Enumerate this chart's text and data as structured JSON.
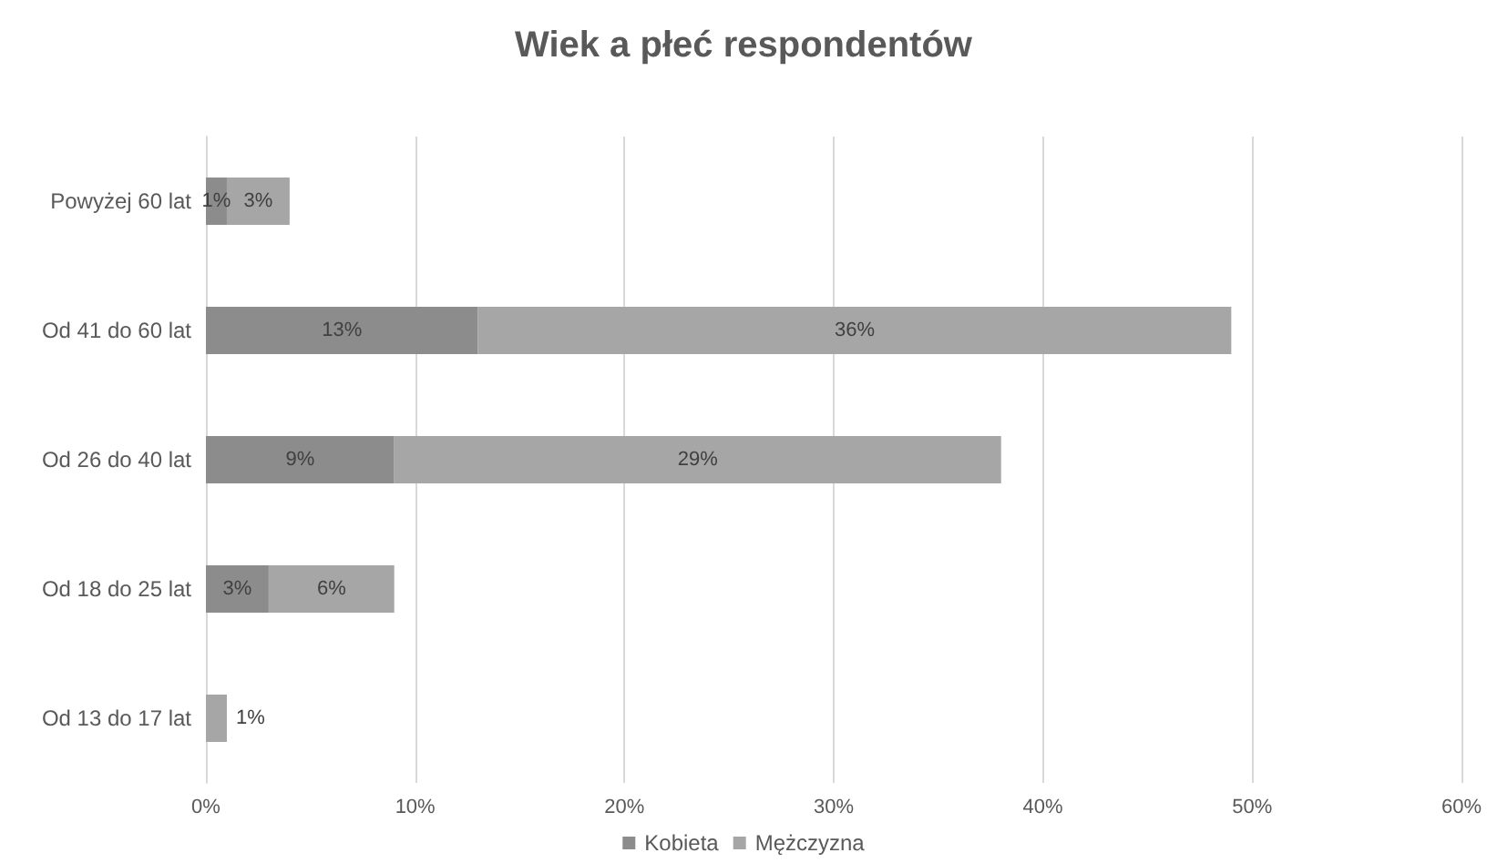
{
  "chart_data": {
    "type": "bar",
    "orientation": "horizontal",
    "stacked": true,
    "title": "Wiek a płeć respondentów",
    "categories": [
      "Powyżej 60 lat",
      "Od 41 do 60 lat",
      "Od 26 do 40 lat",
      "Od 18 do 25 lat",
      "Od 13 do 17 lat"
    ],
    "series": [
      {
        "name": "Kobieta",
        "color": "#8c8c8c",
        "values": [
          1,
          13,
          9,
          3,
          null
        ],
        "value_labels": [
          "1%",
          "13%",
          "9%",
          "3%",
          null
        ]
      },
      {
        "name": "Mężczyzna",
        "color": "#a6a6a6",
        "values": [
          3,
          36,
          29,
          6,
          1
        ],
        "value_labels": [
          "3%",
          "36%",
          "29%",
          "6%",
          "1%"
        ]
      }
    ],
    "xlim": [
      0,
      60
    ],
    "xticks": [
      {
        "value": 0,
        "label": "0%"
      },
      {
        "value": 10,
        "label": "10%"
      },
      {
        "value": 20,
        "label": "20%"
      },
      {
        "value": 30,
        "label": "30%"
      },
      {
        "value": 40,
        "label": "40%"
      },
      {
        "value": 50,
        "label": "50%"
      },
      {
        "value": 60,
        "label": "60%"
      }
    ],
    "grid": "x",
    "legend": "bottom"
  }
}
